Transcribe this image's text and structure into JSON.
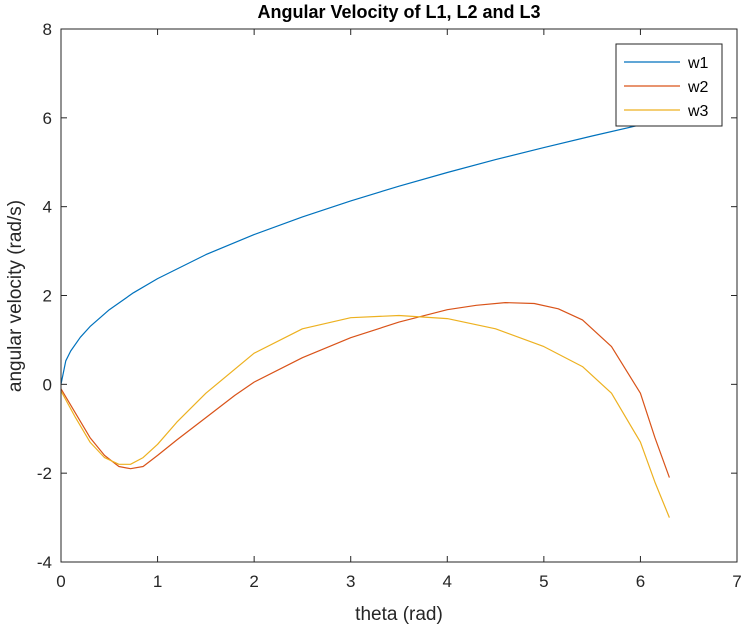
{
  "chart_data": {
    "type": "line",
    "title": "Angular Velocity of L1, L2 and L3",
    "xlabel": "theta (rad)",
    "ylabel": "angular velocity (rad/s)",
    "xlim": [
      0,
      7
    ],
    "ylim": [
      -4,
      8
    ],
    "xticks": [
      0,
      1,
      2,
      3,
      4,
      5,
      6,
      7
    ],
    "yticks": [
      -4,
      -2,
      0,
      2,
      4,
      6,
      8
    ],
    "legend_position": "top-right",
    "series": [
      {
        "name": "w1",
        "color": "#0072BD",
        "x": [
          0,
          0.05,
          0.1,
          0.2,
          0.3,
          0.5,
          0.75,
          1,
          1.5,
          2,
          2.5,
          3,
          3.5,
          4,
          4.5,
          5,
          5.5,
          6,
          6.3
        ],
        "y": [
          0,
          0.53,
          0.75,
          1.06,
          1.3,
          1.68,
          2.06,
          2.38,
          2.92,
          3.37,
          3.77,
          4.13,
          4.46,
          4.77,
          5.06,
          5.33,
          5.59,
          5.84,
          5.98
        ]
      },
      {
        "name": "w2",
        "color": "#D95319",
        "x": [
          0,
          0.15,
          0.3,
          0.45,
          0.6,
          0.72,
          0.85,
          1,
          1.2,
          1.5,
          1.8,
          2,
          2.5,
          3,
          3.5,
          4,
          4.3,
          4.6,
          4.9,
          5.15,
          5.4,
          5.7,
          6,
          6.15,
          6.3
        ],
        "y": [
          -0.1,
          -0.65,
          -1.2,
          -1.6,
          -1.85,
          -1.9,
          -1.85,
          -1.6,
          -1.25,
          -0.75,
          -0.25,
          0.05,
          0.6,
          1.05,
          1.4,
          1.68,
          1.78,
          1.84,
          1.82,
          1.7,
          1.45,
          0.85,
          -0.2,
          -1.2,
          -2.1
        ]
      },
      {
        "name": "w3",
        "color": "#EDB120",
        "x": [
          0,
          0.15,
          0.3,
          0.45,
          0.6,
          0.72,
          0.85,
          1,
          1.2,
          1.5,
          2,
          2.5,
          3,
          3.5,
          4,
          4.5,
          5,
          5.4,
          5.7,
          6,
          6.15,
          6.3
        ],
        "y": [
          -0.15,
          -0.75,
          -1.3,
          -1.65,
          -1.8,
          -1.8,
          -1.65,
          -1.35,
          -0.85,
          -0.2,
          0.7,
          1.25,
          1.5,
          1.55,
          1.48,
          1.25,
          0.85,
          0.4,
          -0.2,
          -1.3,
          -2.2,
          -3.0
        ]
      }
    ]
  }
}
